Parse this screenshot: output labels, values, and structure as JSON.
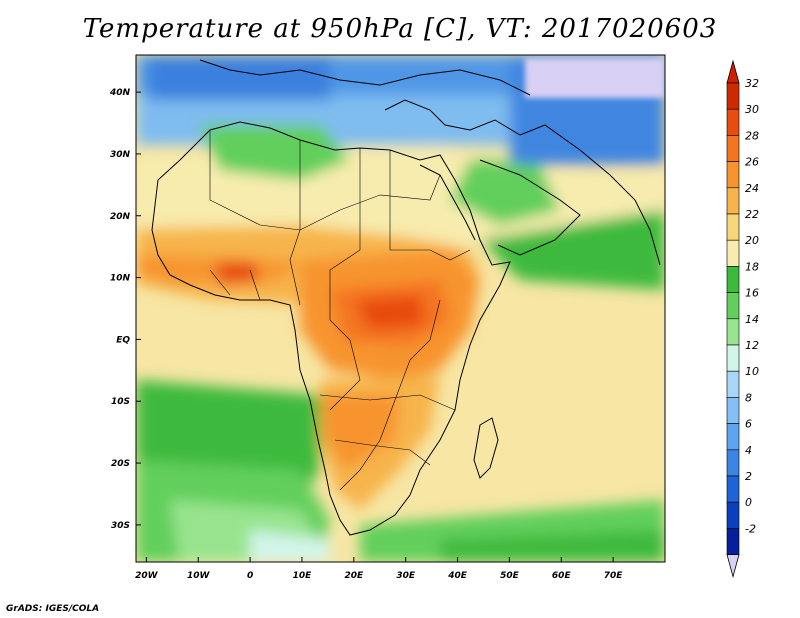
{
  "title": "Temperature at 950hPa [C], VT: 2017020603",
  "credit": "GrADS: IGES/COLA",
  "map": {
    "region": "Africa",
    "lon_range": [
      -22,
      80
    ],
    "lat_range": [
      -36,
      46
    ],
    "lat_ticks": [
      {
        "lat": 40,
        "label": "40N"
      },
      {
        "lat": 30,
        "label": "30N"
      },
      {
        "lat": 20,
        "label": "20N"
      },
      {
        "lat": 10,
        "label": "10N"
      },
      {
        "lat": 0,
        "label": "EQ"
      },
      {
        "lat": -10,
        "label": "10S"
      },
      {
        "lat": -20,
        "label": "20S"
      },
      {
        "lat": -30,
        "label": "30S"
      }
    ],
    "lon_ticks": [
      {
        "lon": -20,
        "label": "20W"
      },
      {
        "lon": -10,
        "label": "10W"
      },
      {
        "lon": 0,
        "label": "0"
      },
      {
        "lon": 10,
        "label": "10E"
      },
      {
        "lon": 20,
        "label": "20E"
      },
      {
        "lon": 30,
        "label": "30E"
      },
      {
        "lon": 40,
        "label": "40E"
      },
      {
        "lon": 50,
        "label": "50E"
      },
      {
        "lon": 60,
        "label": "60E"
      },
      {
        "lon": 70,
        "label": "70E"
      }
    ]
  },
  "colorbar": {
    "labels": [
      "32",
      "30",
      "28",
      "26",
      "24",
      "22",
      "20",
      "18",
      "16",
      "14",
      "12",
      "10",
      "8",
      "6",
      "4",
      "2",
      "0",
      "-2"
    ],
    "colors": [
      "#cc2a00",
      "#e84c0e",
      "#f47521",
      "#f7942f",
      "#f7b44c",
      "#f7d57a",
      "#f7ecae",
      "#3cba3c",
      "#62cf5c",
      "#98e48e",
      "#d2f5ea",
      "#a9d6f7",
      "#84c0f5",
      "#5ea4ef",
      "#3a86e5",
      "#1e64d6",
      "#0a40bd",
      "#05209a"
    ],
    "top_color": "#d21e00",
    "bottom_color": "#d8d0f5"
  }
}
